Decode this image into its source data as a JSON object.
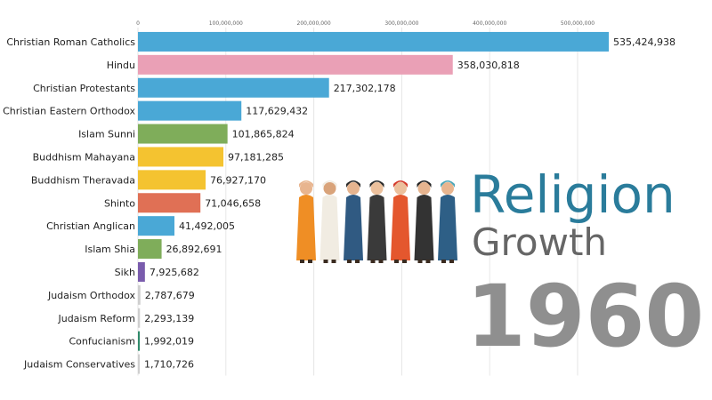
{
  "title_line1": "Religion",
  "title_line2": "Growth",
  "year": "1960",
  "chart_data": {
    "type": "bar",
    "orientation": "horizontal",
    "xlim": [
      0,
      535424938
    ],
    "ticks": [
      0,
      100000000,
      200000000,
      300000000,
      400000000,
      500000000
    ],
    "tick_labels": [
      "0",
      "100,000,000",
      "200,000,000",
      "300,000,000",
      "400,000,000",
      "500,000,000"
    ],
    "grid": true,
    "categories": [
      "Christian Roman Catholics",
      "Hindu",
      "Christian Protestants",
      "Christian Eastern Orthodox",
      "Islam Sunni",
      "Buddhism Mahayana",
      "Buddhism Theravada",
      "Shinto",
      "Christian Anglican",
      "Islam Shia",
      "Sikh",
      "Judaism Orthodox",
      "Judaism Reform",
      "Confucianism",
      "Judaism Conservatives"
    ],
    "values": [
      535424938,
      358030818,
      217302178,
      117629432,
      101865824,
      97181285,
      76927170,
      71046658,
      41492005,
      26892691,
      7925682,
      2787679,
      2293139,
      1992019,
      1710726
    ],
    "value_labels": [
      "535,424,938",
      "358,030,818",
      "217,302,178",
      "117,629,432",
      "101,865,824",
      "97,181,285",
      "76,927,170",
      "71,046,658",
      "41,492,005",
      "26,892,691",
      "7,925,682",
      "2,787,679",
      "2,293,139",
      "1,992,019",
      "1,710,726"
    ],
    "colors": [
      "#4aa8d6",
      "#eaa0b6",
      "#4aa8d6",
      "#4aa8d6",
      "#7fad5a",
      "#f4c330",
      "#f4c330",
      "#e07055",
      "#4aa8d6",
      "#7fad5a",
      "#7a5cad",
      "#cfcfcf",
      "#cfcfcf",
      "#2f8a6a",
      "#cfcfcf"
    ]
  },
  "illustration": {
    "name": "people-of-different-religions",
    "figures": [
      {
        "robe": "#ef8e25",
        "skin": "#e8b58f",
        "head": "#e8b58f"
      },
      {
        "robe": "#f1ece2",
        "skin": "#d9a37a",
        "head": "#f1ece2"
      },
      {
        "robe": "#305a82",
        "skin": "#e6b48f",
        "head": "#2b2b2b"
      },
      {
        "robe": "#3a3a3a",
        "skin": "#ecc09c",
        "head": "#2a2a2a"
      },
      {
        "robe": "#e4572e",
        "skin": "#ecc09c",
        "head": "#d43a2a"
      },
      {
        "robe": "#333333",
        "skin": "#e6b48f",
        "head": "#222222"
      },
      {
        "robe": "#2e5f86",
        "skin": "#e8b58f",
        "head": "#4ca6b8"
      }
    ]
  }
}
